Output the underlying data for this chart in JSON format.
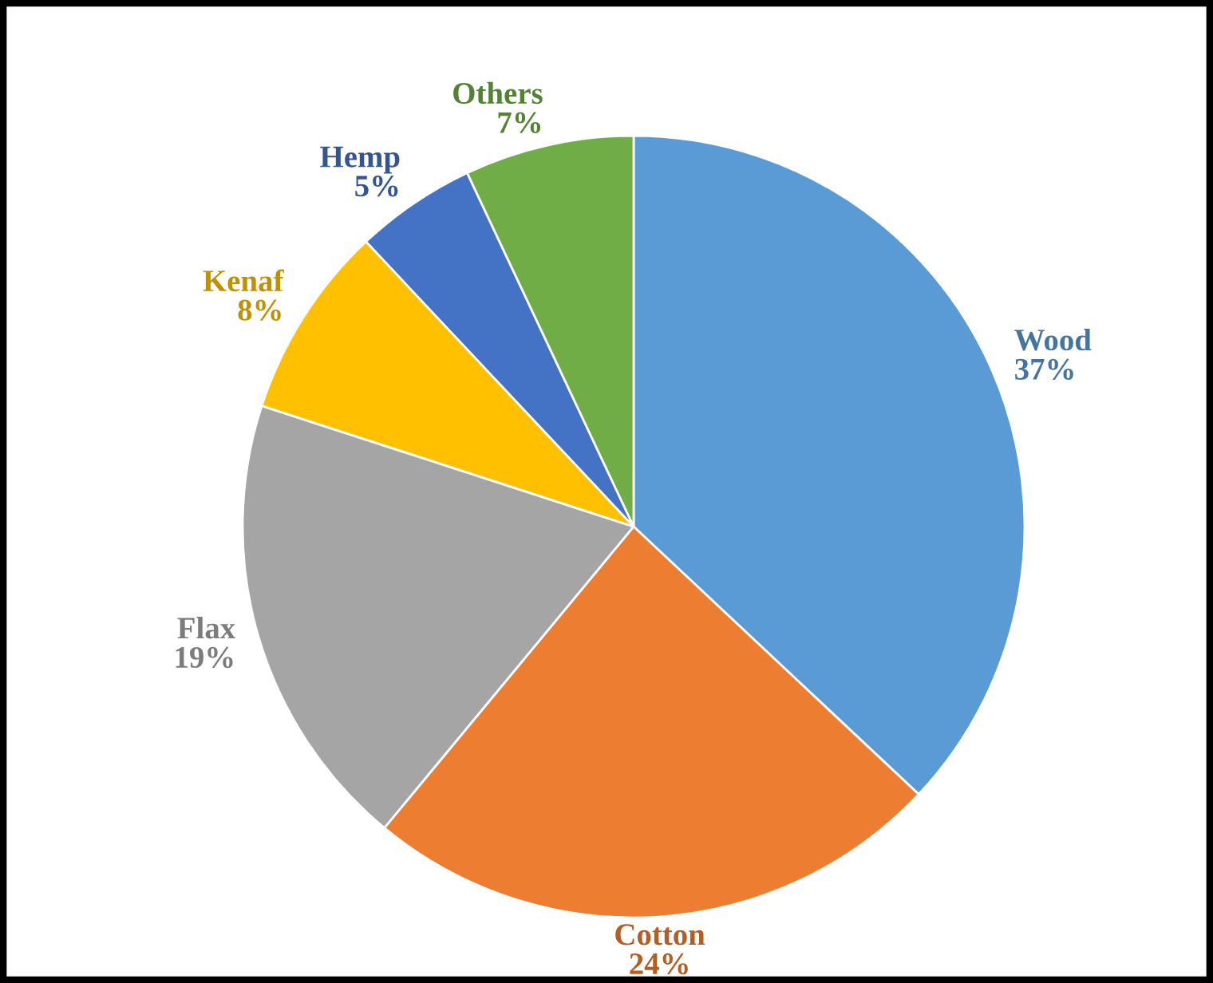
{
  "chart_data": {
    "type": "pie",
    "categories": [
      "Wood",
      "Cotton",
      "Flax",
      "Kenaf",
      "Hemp",
      "Others"
    ],
    "values": [
      37,
      24,
      19,
      8,
      5,
      7
    ],
    "value_labels": [
      "37%",
      "24%",
      "19%",
      "8%",
      "5%",
      "7%"
    ],
    "colors": [
      "#5b9bd5",
      "#ed7d31",
      "#a5a5a5",
      "#ffc000",
      "#4472c4",
      "#70ad47"
    ]
  }
}
